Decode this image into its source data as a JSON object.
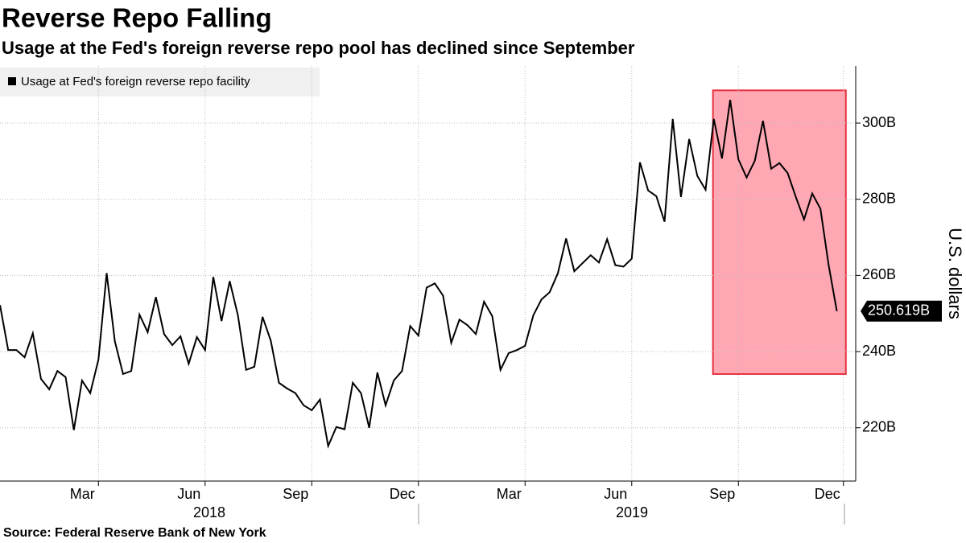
{
  "chart_data": {
    "type": "line",
    "title": "Reverse Repo Falling",
    "subtitle": "Usage at the Fed's foreign reverse repo pool has declined since September",
    "source": "Source: Federal Reserve Bank of New York",
    "y_axis_label": "U.S. dollars",
    "legend": "top-left",
    "grid": true,
    "series": [
      {
        "name": "Usage at Fed's foreign reverse repo facility",
        "color": "#000000",
        "values": [
          252.2,
          240.4,
          240.4,
          238.5,
          244.8,
          232.8,
          230.1,
          234.9,
          233.3,
          219.4,
          232.4,
          229.1,
          237.9,
          260.6,
          242.7,
          234.1,
          234.9,
          249.7,
          245.1,
          254.3,
          244.6,
          241.7,
          244.0,
          236.8,
          243.8,
          240.4,
          259.6,
          248.0,
          258.5,
          249.5,
          235.2,
          236.0,
          249.1,
          242.9,
          231.8,
          230.3,
          229.1,
          225.9,
          224.6,
          227.4,
          215.2,
          220.2,
          219.6,
          231.8,
          229.1,
          220.0,
          234.5,
          225.9,
          232.4,
          234.9,
          246.7,
          244.2,
          256.8,
          257.9,
          254.7,
          242.3,
          248.4,
          246.9,
          244.6,
          253.1,
          249.3,
          235.2,
          239.6,
          240.4,
          241.5,
          249.5,
          253.7,
          255.6,
          260.6,
          269.7,
          261.1,
          263.2,
          265.3,
          263.4,
          269.5,
          262.7,
          262.3,
          264.4,
          289.7,
          282.3,
          280.8,
          274.1,
          301.1,
          280.6,
          295.8,
          286.1,
          282.5,
          301.1,
          290.7,
          306.1,
          290.5,
          285.7,
          290.1,
          300.6,
          288.0,
          289.5,
          286.9,
          280.6,
          274.7,
          281.5,
          277.5,
          262.7,
          250.619
        ],
        "last_label": "250.619B"
      }
    ],
    "xlim": [
      0,
      104.3
    ],
    "xticks": [
      {
        "value": 12,
        "label": "Mar"
      },
      {
        "value": 25,
        "label": "Jun"
      },
      {
        "value": 38,
        "label": "Sep"
      },
      {
        "value": 51,
        "label": "Dec"
      },
      {
        "value": 64,
        "label": "Mar"
      },
      {
        "value": 77,
        "label": "Jun"
      },
      {
        "value": 90,
        "label": "Sep"
      },
      {
        "value": 102.8,
        "label": "Dec"
      }
    ],
    "years": [
      "2018",
      "2019"
    ],
    "ylim": [
      206,
      315
    ],
    "yticks": [
      {
        "value": 220,
        "label": "220B"
      },
      {
        "value": 240,
        "label": "240B"
      },
      {
        "value": 260,
        "label": "260B"
      },
      {
        "value": 280,
        "label": "280B"
      },
      {
        "value": 300,
        "label": "300B"
      }
    ],
    "highlight": {
      "x": [
        86.9,
        103.1
      ],
      "y": [
        234.1,
        308.6
      ],
      "color": "#ffa8b4",
      "border": "#e8323f"
    }
  }
}
